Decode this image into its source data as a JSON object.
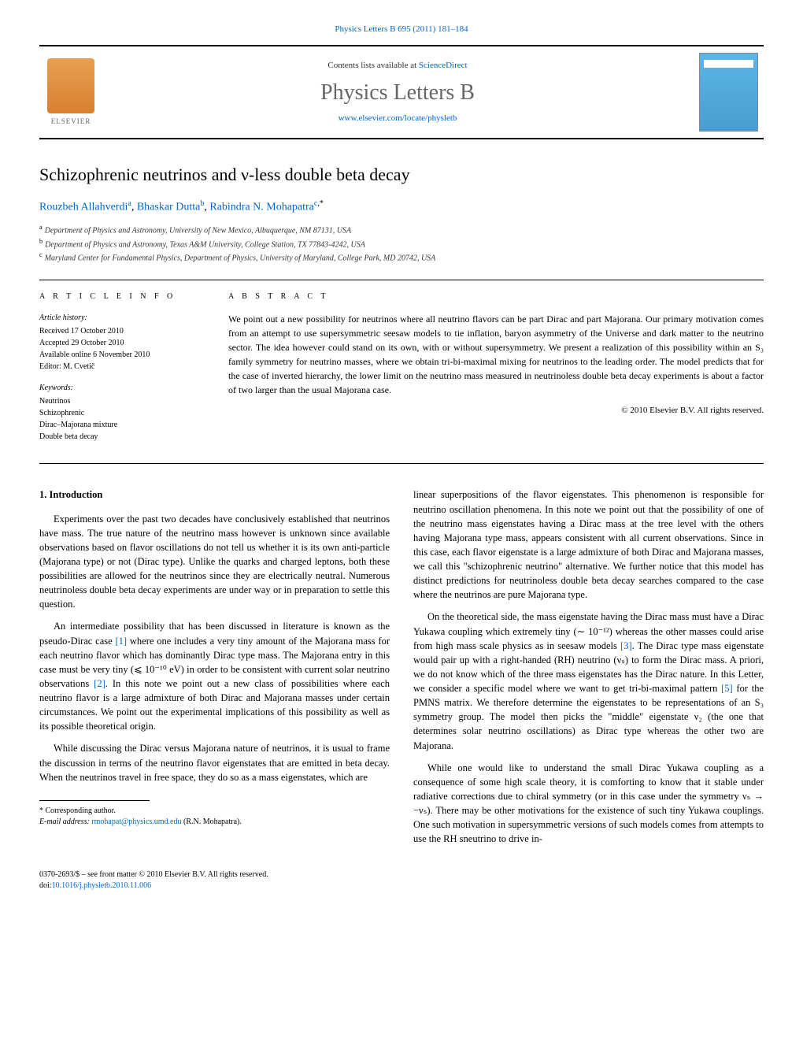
{
  "header": {
    "citation": "Physics Letters B 695 (2011) 181–184",
    "contents_prefix": "Contents lists available at ",
    "contents_link": "ScienceDirect",
    "journal_name": "Physics Letters B",
    "journal_url": "www.elsevier.com/locate/physletb",
    "publisher": "ELSEVIER"
  },
  "article": {
    "title": "Schizophrenic neutrinos and ν-less double beta decay",
    "authors": [
      {
        "name": "Rouzbeh Allahverdi",
        "affil": "a"
      },
      {
        "name": "Bhaskar Dutta",
        "affil": "b"
      },
      {
        "name": "Rabindra N. Mohapatra",
        "affil": "c",
        "corresponding": true
      }
    ],
    "affiliations": [
      {
        "sup": "a",
        "text": "Department of Physics and Astronomy, University of New Mexico, Albuquerque, NM 87131, USA"
      },
      {
        "sup": "b",
        "text": "Department of Physics and Astronomy, Texas A&M University, College Station, TX 77843-4242, USA"
      },
      {
        "sup": "c",
        "text": "Maryland Center for Fundamental Physics, Department of Physics, University of Maryland, College Park, MD 20742, USA"
      }
    ]
  },
  "info": {
    "heading": "A R T I C L E   I N F O",
    "history_label": "Article history:",
    "history": [
      "Received 17 October 2010",
      "Accepted 29 October 2010",
      "Available online 6 November 2010",
      "Editor: M. Cvetič"
    ],
    "keywords_label": "Keywords:",
    "keywords": [
      "Neutrinos",
      "Schizophrenic",
      "Dirac–Majorana mixture",
      "Double beta decay"
    ]
  },
  "abstract": {
    "heading": "A B S T R A C T",
    "text": "We point out a new possibility for neutrinos where all neutrino flavors can be part Dirac and part Majorana. Our primary motivation comes from an attempt to use supersymmetric seesaw models to tie inflation, baryon asymmetry of the Universe and dark matter to the neutrino sector. The idea however could stand on its own, with or without supersymmetry. We present a realization of this possibility within an S₃ family symmetry for neutrino masses, where we obtain tri-bi-maximal mixing for neutrinos to the leading order. The model predicts that for the case of inverted hierarchy, the lower limit on the neutrino mass measured in neutrinoless double beta decay experiments is about a factor of two larger than the usual Majorana case.",
    "copyright": "© 2010 Elsevier B.V. All rights reserved."
  },
  "body": {
    "section1_heading": "1. Introduction",
    "col1_p1": "Experiments over the past two decades have conclusively established that neutrinos have mass. The true nature of the neutrino mass however is unknown since available observations based on flavor oscillations do not tell us whether it is its own anti-particle (Majorana type) or not (Dirac type). Unlike the quarks and charged leptons, both these possibilities are allowed for the neutrinos since they are electrically neutral. Numerous neutrinoless double beta decay experiments are under way or in preparation to settle this question.",
    "col1_p2_a": "An intermediate possibility that has been discussed in literature is known as the pseudo-Dirac case ",
    "col1_p2_ref1": "[1]",
    "col1_p2_b": " where one includes a very tiny amount of the Majorana mass for each neutrino flavor which has dominantly Dirac type mass. The Majorana entry in this case must be very tiny (⩽ 10⁻¹⁰ eV) in order to be consistent with current solar neutrino observations ",
    "col1_p2_ref2": "[2]",
    "col1_p2_c": ". In this note we point out a new class of possibilities where each neutrino flavor is a large admixture of both Dirac and Majorana masses under certain circumstances. We point out the experimental implications of this possibility as well as its possible theoretical origin.",
    "col1_p3": "While discussing the Dirac versus Majorana nature of neutrinos, it is usual to frame the discussion in terms of the neutrino flavor eigenstates that are emitted in beta decay. When the neutrinos travel in free space, they do so as a mass eigenstates, which are",
    "col2_p1": "linear superpositions of the flavor eigenstates. This phenomenon is responsible for neutrino oscillation phenomena. In this note we point out that the possibility of one of the neutrino mass eigenstates having a Dirac mass at the tree level with the others having Majorana type mass, appears consistent with all current observations. Since in this case, each flavor eigenstate is a large admixture of both Dirac and Majorana masses, we call this \"schizophrenic neutrino\" alternative. We further notice that this model has distinct predictions for neutrinoless double beta decay searches compared to the case where the neutrinos are pure Majorana type.",
    "col2_p2_a": "On the theoretical side, the mass eigenstate having the Dirac mass must have a Dirac Yukawa coupling which extremely tiny (∼ 10⁻¹²) whereas the other masses could arise from high mass scale physics as in seesaw models ",
    "col2_p2_ref3": "[3]",
    "col2_p2_b": ". The Dirac type mass eigenstate would pair up with a right-handed (RH) neutrino (νₛ) to form the Dirac mass. A priori, we do not know which of the three mass eigenstates has the Dirac nature. In this Letter, we consider a specific model where we want to get tri-bi-maximal pattern ",
    "col2_p2_ref5": "[5]",
    "col2_p2_c": " for the PMNS matrix. We therefore determine the eigenstates to be representations of an S₃ symmetry group. The model then picks the \"middle\" eigenstate ν₂ (the one that determines solar neutrino oscillations) as Dirac type whereas the other two are Majorana.",
    "col2_p3": "While one would like to understand the small Dirac Yukawa coupling as a consequence of some high scale theory, it is comforting to know that it stable under radiative corrections due to chiral symmetry (or in this case under the symmetry νₛ → −νₛ). There may be other motivations for the existence of such tiny Yukawa couplings. One such motivation in supersymmetric versions of such models comes from attempts to use the RH sneutrino to drive in-"
  },
  "footnote": {
    "corr_label": "* Corresponding author.",
    "email_label": "E-mail address: ",
    "email": "rmohapat@physics.umd.edu",
    "email_name": " (R.N. Mohapatra)."
  },
  "footer": {
    "issn_line": "0370-2693/$ – see front matter © 2010 Elsevier B.V. All rights reserved.",
    "doi_prefix": "doi:",
    "doi": "10.1016/j.physletb.2010.11.006"
  },
  "colors": {
    "link": "#0066cc",
    "text": "#000000",
    "journal_gray": "#666666",
    "elsevier_orange": "#d88030",
    "cover_blue": "#5bb5e8"
  }
}
